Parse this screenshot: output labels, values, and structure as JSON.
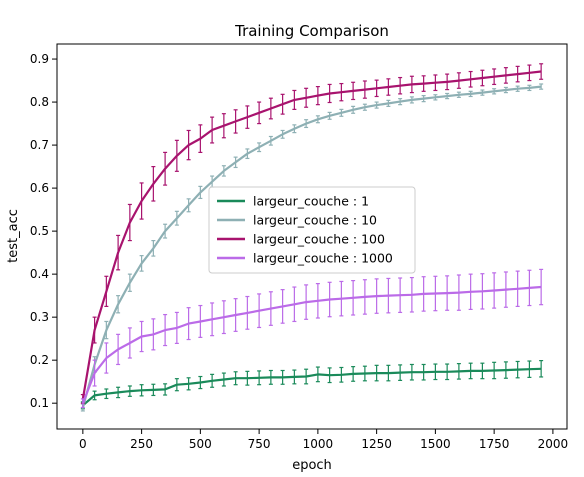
{
  "chart_data": {
    "type": "line",
    "title": "Training Comparison",
    "xlabel": "epoch",
    "ylabel": "test_acc",
    "xlim": [
      -110,
      2060
    ],
    "ylim": [
      0.04,
      0.935
    ],
    "xticks": [
      0,
      250,
      500,
      750,
      1000,
      1250,
      1500,
      1750,
      2000
    ],
    "yticks": [
      0.1,
      0.2,
      0.3,
      0.4,
      0.5,
      0.6,
      0.7,
      0.8,
      0.9
    ],
    "grid": false,
    "legend_position": "center",
    "x": [
      0,
      50,
      100,
      150,
      200,
      250,
      300,
      350,
      400,
      450,
      500,
      550,
      600,
      650,
      700,
      750,
      800,
      850,
      900,
      950,
      1000,
      1050,
      1100,
      1150,
      1200,
      1250,
      1300,
      1350,
      1400,
      1450,
      1500,
      1550,
      1600,
      1650,
      1700,
      1750,
      1800,
      1850,
      1900,
      1950
    ],
    "series": [
      {
        "name": "largeur_couche : 1",
        "color": "#1a8a5a",
        "values": [
          0.095,
          0.118,
          0.122,
          0.125,
          0.128,
          0.13,
          0.131,
          0.132,
          0.143,
          0.145,
          0.148,
          0.152,
          0.155,
          0.158,
          0.158,
          0.159,
          0.16,
          0.16,
          0.161,
          0.162,
          0.167,
          0.165,
          0.166,
          0.168,
          0.169,
          0.17,
          0.17,
          0.171,
          0.172,
          0.172,
          0.173,
          0.173,
          0.174,
          0.175,
          0.175,
          0.176,
          0.177,
          0.178,
          0.179,
          0.18
        ],
        "error": [
          0.008,
          0.01,
          0.011,
          0.012,
          0.012,
          0.013,
          0.013,
          0.013,
          0.014,
          0.014,
          0.014,
          0.015,
          0.015,
          0.015,
          0.016,
          0.016,
          0.016,
          0.016,
          0.016,
          0.017,
          0.017,
          0.017,
          0.017,
          0.017,
          0.017,
          0.018,
          0.018,
          0.018,
          0.018,
          0.018,
          0.018,
          0.018,
          0.018,
          0.018,
          0.018,
          0.019,
          0.019,
          0.019,
          0.019,
          0.019
        ]
      },
      {
        "name": "largeur_couche : 10",
        "color": "#8eb0b4",
        "values": [
          0.09,
          0.19,
          0.27,
          0.33,
          0.38,
          0.425,
          0.46,
          0.5,
          0.53,
          0.56,
          0.59,
          0.615,
          0.64,
          0.66,
          0.68,
          0.695,
          0.71,
          0.725,
          0.738,
          0.75,
          0.76,
          0.768,
          0.775,
          0.782,
          0.788,
          0.793,
          0.797,
          0.801,
          0.805,
          0.808,
          0.811,
          0.814,
          0.817,
          0.819,
          0.822,
          0.825,
          0.828,
          0.831,
          0.833,
          0.836
        ],
        "error": [
          0.008,
          0.018,
          0.02,
          0.02,
          0.02,
          0.018,
          0.018,
          0.016,
          0.016,
          0.015,
          0.014,
          0.013,
          0.012,
          0.012,
          0.011,
          0.01,
          0.01,
          0.009,
          0.009,
          0.009,
          0.008,
          0.008,
          0.008,
          0.008,
          0.007,
          0.007,
          0.007,
          0.007,
          0.007,
          0.007,
          0.006,
          0.006,
          0.006,
          0.006,
          0.006,
          0.006,
          0.006,
          0.006,
          0.006,
          0.006
        ]
      },
      {
        "name": "largeur_couche : 100",
        "color": "#a8136e",
        "values": [
          0.11,
          0.27,
          0.36,
          0.45,
          0.52,
          0.57,
          0.61,
          0.645,
          0.675,
          0.7,
          0.715,
          0.735,
          0.745,
          0.755,
          0.765,
          0.775,
          0.785,
          0.795,
          0.805,
          0.81,
          0.815,
          0.82,
          0.823,
          0.826,
          0.829,
          0.832,
          0.835,
          0.838,
          0.841,
          0.843,
          0.845,
          0.847,
          0.85,
          0.853,
          0.856,
          0.859,
          0.862,
          0.865,
          0.868,
          0.871
        ],
        "error": [
          0.01,
          0.03,
          0.035,
          0.04,
          0.042,
          0.042,
          0.04,
          0.038,
          0.036,
          0.034,
          0.032,
          0.03,
          0.028,
          0.027,
          0.026,
          0.025,
          0.024,
          0.023,
          0.022,
          0.022,
          0.021,
          0.021,
          0.02,
          0.02,
          0.02,
          0.019,
          0.019,
          0.019,
          0.019,
          0.018,
          0.018,
          0.018,
          0.018,
          0.018,
          0.018,
          0.018,
          0.018,
          0.018,
          0.018,
          0.018
        ]
      },
      {
        "name": "largeur_couche : 1000",
        "color": "#bb6be8",
        "values": [
          0.1,
          0.17,
          0.205,
          0.225,
          0.24,
          0.255,
          0.26,
          0.27,
          0.275,
          0.285,
          0.29,
          0.295,
          0.3,
          0.305,
          0.31,
          0.315,
          0.32,
          0.325,
          0.33,
          0.335,
          0.338,
          0.341,
          0.343,
          0.345,
          0.347,
          0.349,
          0.35,
          0.351,
          0.352,
          0.354,
          0.355,
          0.356,
          0.357,
          0.359,
          0.36,
          0.362,
          0.364,
          0.366,
          0.368,
          0.37
        ],
        "error": [
          0.01,
          0.03,
          0.035,
          0.035,
          0.035,
          0.035,
          0.036,
          0.036,
          0.036,
          0.037,
          0.037,
          0.038,
          0.038,
          0.038,
          0.038,
          0.039,
          0.039,
          0.039,
          0.04,
          0.04,
          0.04,
          0.04,
          0.04,
          0.04,
          0.04,
          0.04,
          0.04,
          0.04,
          0.04,
          0.04,
          0.04,
          0.04,
          0.041,
          0.041,
          0.041,
          0.041,
          0.041,
          0.041,
          0.041,
          0.041
        ]
      }
    ]
  }
}
